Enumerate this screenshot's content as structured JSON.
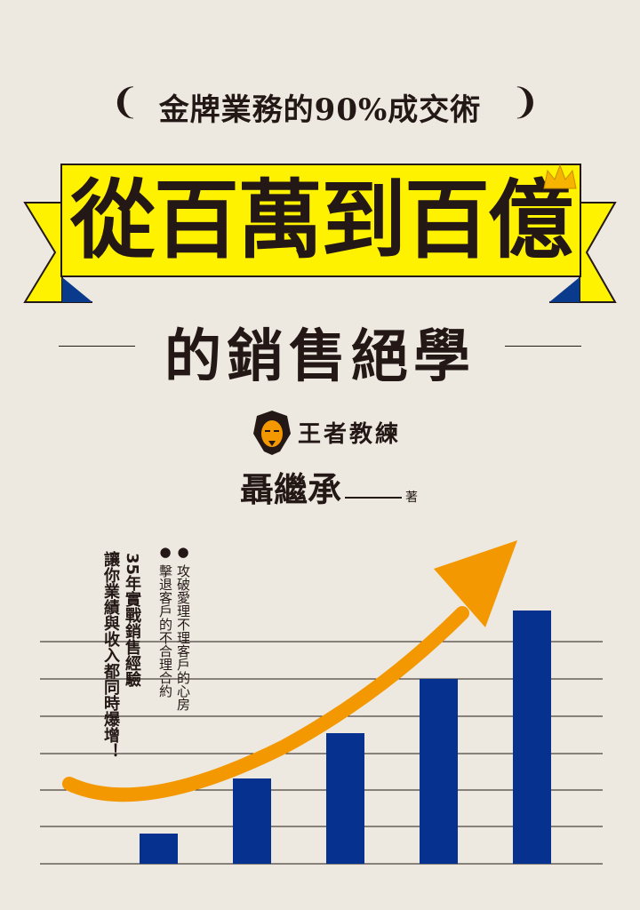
{
  "cover": {
    "subtitle": "金牌業務的90%成交術",
    "main_title": "從百萬到百億",
    "second_title": "的銷售絕學",
    "brand": "王者教練",
    "author": "聶繼承",
    "author_role": "著",
    "bullets": [
      "攻破愛理不理客戶的心房",
      "擊退客戶的不合理合約"
    ],
    "tagline_1": "35年實戰銷售經驗",
    "tagline_2": "讓你業績與收入都同時爆增！"
  },
  "colors": {
    "background": "#ede8e0",
    "banner": "#fff200",
    "ribbon": "#0a3a8c",
    "bars": "#06318f",
    "arrow": "#f39800",
    "text": "#231815"
  },
  "icons": {
    "crown": "crown-icon",
    "lion": "lion-logo",
    "laurel": "laurel-icon"
  }
}
